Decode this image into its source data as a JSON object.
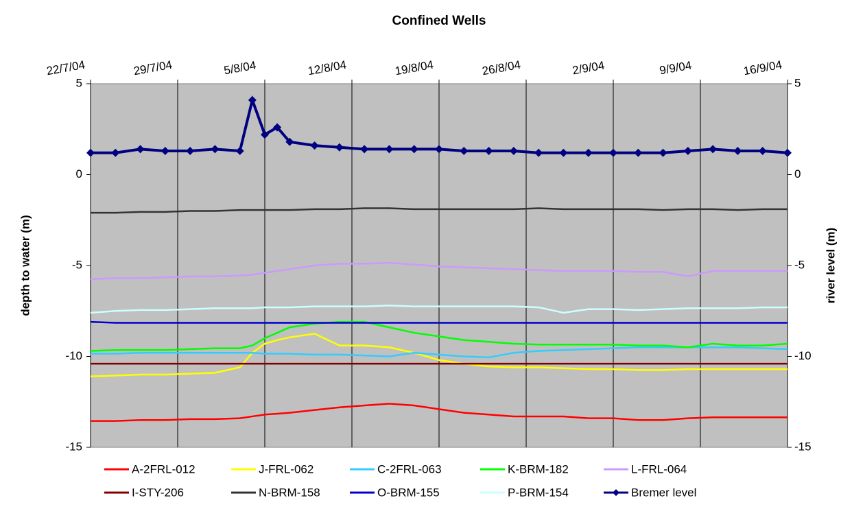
{
  "chart_data": {
    "type": "line",
    "title": "Confined Wells",
    "y_label": "depth to water (m)",
    "y2_label": "river level (m)",
    "x": [
      "2004-07-22",
      "2004-07-24",
      "2004-07-26",
      "2004-07-28",
      "2004-07-30",
      "2004-08-01",
      "2004-08-03",
      "2004-08-04",
      "2004-08-05",
      "2004-08-06",
      "2004-08-07",
      "2004-08-09",
      "2004-08-11",
      "2004-08-13",
      "2004-08-15",
      "2004-08-17",
      "2004-08-19",
      "2004-08-21",
      "2004-08-23",
      "2004-08-25",
      "2004-08-27",
      "2004-08-29",
      "2004-08-31",
      "2004-09-02",
      "2004-09-04",
      "2004-09-06",
      "2004-09-08",
      "2004-09-10",
      "2004-09-12",
      "2004-09-14",
      "2004-09-16"
    ],
    "xlim": [
      "2004-07-22",
      "2004-09-16"
    ],
    "xticks": [
      {
        "value": "2004-07-22",
        "label": "22/7/04"
      },
      {
        "value": "2004-07-29",
        "label": "29/7/04"
      },
      {
        "value": "2004-08-05",
        "label": "5/8/04"
      },
      {
        "value": "2004-08-12",
        "label": "12/8/04"
      },
      {
        "value": "2004-08-19",
        "label": "19/8/04"
      },
      {
        "value": "2004-08-26",
        "label": "26/8/04"
      },
      {
        "value": "2004-09-02",
        "label": "2/9/04"
      },
      {
        "value": "2004-09-09",
        "label": "9/9/04"
      },
      {
        "value": "2004-09-16",
        "label": "16/9/04"
      }
    ],
    "ylim": [
      -15,
      5
    ],
    "yticks": [
      5,
      0,
      -5,
      -10,
      -15
    ],
    "y2lim": [
      -15,
      5
    ],
    "y2ticks": [
      5,
      0,
      -5,
      -10,
      -15
    ],
    "xgrid": true,
    "background": "#c0c0c0",
    "legend": "bottom",
    "series": [
      {
        "name": "A-2FRL-012",
        "color": "#ff0000",
        "values": [
          -13.55,
          -13.55,
          -13.5,
          -13.5,
          -13.45,
          -13.45,
          -13.4,
          -13.3,
          -13.2,
          -13.15,
          -13.1,
          -12.95,
          -12.8,
          -12.7,
          -12.6,
          -12.7,
          -12.9,
          -13.1,
          -13.2,
          -13.3,
          -13.3,
          -13.3,
          -13.4,
          -13.4,
          -13.5,
          -13.5,
          -13.4,
          -13.35,
          -13.35,
          -13.35,
          -13.35
        ]
      },
      {
        "name": "J-FRL-062",
        "color": "#ffff00",
        "values": [
          -11.1,
          -11.05,
          -11.0,
          -11.0,
          -10.95,
          -10.9,
          -10.6,
          -9.8,
          -9.3,
          -9.1,
          -8.95,
          -8.75,
          -9.4,
          -9.4,
          -9.5,
          -9.8,
          -10.2,
          -10.4,
          -10.55,
          -10.6,
          -10.6,
          -10.65,
          -10.7,
          -10.7,
          -10.75,
          -10.75,
          -10.7,
          -10.7,
          -10.7,
          -10.7,
          -10.7
        ]
      },
      {
        "name": "C-2FRL-063",
        "color": "#33ccff",
        "values": [
          -9.85,
          -9.85,
          -9.8,
          -9.8,
          -9.8,
          -9.8,
          -9.8,
          -9.8,
          -9.85,
          -9.85,
          -9.85,
          -9.9,
          -9.9,
          -9.95,
          -10.0,
          -9.8,
          -9.9,
          -10.0,
          -10.05,
          -9.8,
          -9.7,
          -9.65,
          -9.6,
          -9.55,
          -9.5,
          -9.5,
          -9.5,
          -9.5,
          -9.5,
          -9.55,
          -9.6
        ]
      },
      {
        "name": "K-BRM-182",
        "color": "#00ff00",
        "values": [
          -9.7,
          -9.65,
          -9.65,
          -9.65,
          -9.6,
          -9.55,
          -9.55,
          -9.4,
          -9.0,
          -8.7,
          -8.4,
          -8.2,
          -8.1,
          -8.1,
          -8.4,
          -8.7,
          -8.9,
          -9.1,
          -9.2,
          -9.3,
          -9.35,
          -9.35,
          -9.35,
          -9.35,
          -9.4,
          -9.4,
          -9.5,
          -9.3,
          -9.4,
          -9.4,
          -9.3
        ]
      },
      {
        "name": "L-FRL-064",
        "color": "#cc99ff",
        "values": [
          -5.75,
          -5.7,
          -5.7,
          -5.65,
          -5.6,
          -5.6,
          -5.55,
          -5.5,
          -5.4,
          -5.3,
          -5.2,
          -5.0,
          -4.9,
          -4.9,
          -4.85,
          -4.95,
          -5.05,
          -5.1,
          -5.15,
          -5.2,
          -5.25,
          -5.3,
          -5.3,
          -5.3,
          -5.35,
          -5.35,
          -5.6,
          -5.3,
          -5.3,
          -5.3,
          -5.3
        ]
      },
      {
        "name": "I-STY-206",
        "color": "#800000",
        "values": [
          -10.4,
          -10.4,
          -10.4,
          -10.4,
          -10.4,
          -10.4,
          -10.4,
          -10.4,
          -10.4,
          -10.4,
          -10.4,
          -10.4,
          -10.4,
          -10.4,
          -10.4,
          -10.4,
          -10.4,
          -10.4,
          -10.4,
          -10.4,
          -10.4,
          -10.4,
          -10.4,
          -10.4,
          -10.4,
          -10.4,
          -10.4,
          -10.4,
          -10.4,
          -10.4,
          -10.4
        ]
      },
      {
        "name": "N-BRM-158",
        "color": "#333333",
        "values": [
          -2.1,
          -2.1,
          -2.05,
          -2.05,
          -2.0,
          -2.0,
          -1.95,
          -1.95,
          -1.95,
          -1.95,
          -1.95,
          -1.9,
          -1.9,
          -1.85,
          -1.85,
          -1.9,
          -1.9,
          -1.9,
          -1.9,
          -1.9,
          -1.85,
          -1.9,
          -1.9,
          -1.9,
          -1.9,
          -1.95,
          -1.9,
          -1.9,
          -1.95,
          -1.9,
          -1.9
        ]
      },
      {
        "name": "O-BRM-155",
        "color": "#0000cc",
        "values": [
          -8.1,
          -8.15,
          -8.15,
          -8.15,
          -8.15,
          -8.15,
          -8.15,
          -8.15,
          -8.15,
          -8.15,
          -8.15,
          -8.15,
          -8.15,
          -8.15,
          -8.15,
          -8.15,
          -8.15,
          -8.15,
          -8.15,
          -8.15,
          -8.15,
          -8.15,
          -8.15,
          -8.15,
          -8.15,
          -8.15,
          -8.15,
          -8.15,
          -8.15,
          -8.15,
          -8.15
        ]
      },
      {
        "name": "P-BRM-154",
        "color": "#ccffff",
        "values": [
          -7.6,
          -7.5,
          -7.45,
          -7.45,
          -7.4,
          -7.35,
          -7.35,
          -7.35,
          -7.3,
          -7.3,
          -7.3,
          -7.25,
          -7.25,
          -7.25,
          -7.2,
          -7.25,
          -7.25,
          -7.25,
          -7.25,
          -7.25,
          -7.3,
          -7.6,
          -7.4,
          -7.4,
          -7.45,
          -7.4,
          -7.35,
          -7.35,
          -7.35,
          -7.3,
          -7.3
        ]
      },
      {
        "name": "Bremer level",
        "color": "#000080",
        "axis": "y2",
        "marker": "diamond",
        "values": [
          1.2,
          1.2,
          1.4,
          1.3,
          1.3,
          1.4,
          1.3,
          4.1,
          2.2,
          2.6,
          1.8,
          1.6,
          1.5,
          1.4,
          1.4,
          1.4,
          1.4,
          1.3,
          1.3,
          1.3,
          1.2,
          1.2,
          1.2,
          1.2,
          1.2,
          1.2,
          1.3,
          1.4,
          1.3,
          1.3,
          1.2
        ]
      }
    ]
  }
}
